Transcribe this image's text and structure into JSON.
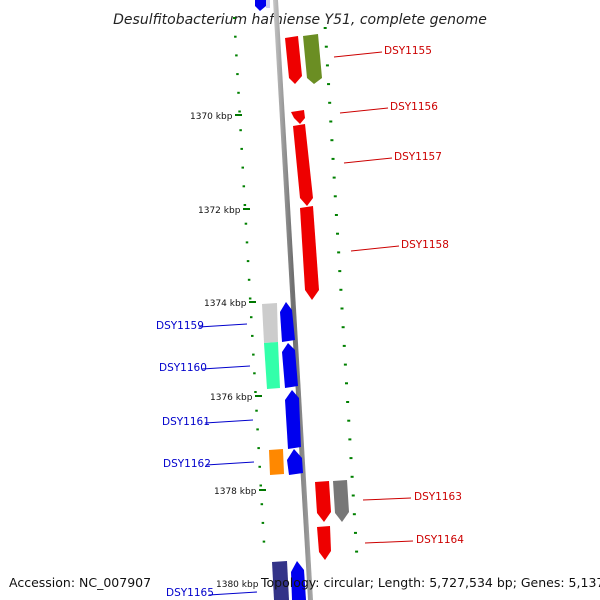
{
  "title": "Desulfitobacterium hafniense Y51, complete genome",
  "footer": {
    "accession": "Accession: NC_007907",
    "topology": "Topology: circular; Length: 5,727,534 bp; Genes: 5,137"
  },
  "scale_labels": [
    "1370 kbp",
    "1372 kbp",
    "1374 kbp",
    "1376 kbp",
    "1378 kbp",
    "1380 kbp"
  ],
  "genes": [
    {
      "id": "DSY1155",
      "strand": "+",
      "color": "#ff0000"
    },
    {
      "id": "DSY1156",
      "strand": "+",
      "color": "#ff0000"
    },
    {
      "id": "DSY1157",
      "strand": "+",
      "color": "#ff0000"
    },
    {
      "id": "DSY1158",
      "strand": "+",
      "color": "#ff0000"
    },
    {
      "id": "DSY1159",
      "strand": "-",
      "color": "#0000ff"
    },
    {
      "id": "DSY1160",
      "strand": "-",
      "color": "#0000ff"
    },
    {
      "id": "DSY1161",
      "strand": "-",
      "color": "#0000ff"
    },
    {
      "id": "DSY1162",
      "strand": "-",
      "color": "#0000ff"
    },
    {
      "id": "DSY1163",
      "strand": "+",
      "color": "#ff0000"
    },
    {
      "id": "DSY1164",
      "strand": "+",
      "color": "#ff0000"
    },
    {
      "id": "DSY1165",
      "strand": "-",
      "color": "#0000ff"
    }
  ],
  "colors": {
    "plus_strand": "#ff0000",
    "minus_strand": "#0000ff",
    "backbone": "#808080",
    "gc_ticks": "#008000",
    "cog_green": "#6b8e23",
    "cog_gray": "#777777",
    "cog_lightgray": "#cccccc",
    "cog_teal": "#33ffaa",
    "cog_orange": "#ff8800",
    "cog_navy": "#333388"
  }
}
